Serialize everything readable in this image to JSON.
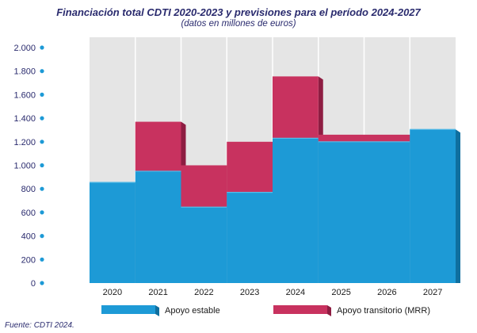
{
  "title": "Financiación total CDTI 2020-2023 y previsiones para el período 2024-2027",
  "subtitle": "(datos en millones de euros)",
  "source": "Fuente: CDTI 2024.",
  "colors": {
    "estable": "#1d9ad6",
    "estable_side": "#0f6f9f",
    "estable_top": "#58bce8",
    "mrr": "#c8325f",
    "mrr_side": "#8e1d42",
    "mrr_top": "#dd5a82",
    "axis_text": "#2a2b6e",
    "dot": "#1d9ad6",
    "grid_bg": "#e5e5e5"
  },
  "chart_data": {
    "type": "bar",
    "stacked": true,
    "title": "Financiación total CDTI 2020-2023 y previsiones para el período 2024-2027",
    "subtitle": "(datos en millones de euros)",
    "categories": [
      "2020",
      "2021",
      "2022",
      "2023",
      "2024",
      "2025",
      "2026",
      "2027"
    ],
    "series": [
      {
        "name": "Apoyo estable",
        "values": [
          855,
          950,
          645,
          770,
          1230,
          1200,
          1200,
          1305
        ]
      },
      {
        "name": "Apoyo transitorio (MRR)",
        "values": [
          0,
          420,
          355,
          430,
          525,
          60,
          60,
          0
        ]
      }
    ],
    "ylim": [
      0,
      2000
    ],
    "yticks": [
      0,
      200,
      400,
      600,
      800,
      1000,
      1200,
      1400,
      1600,
      1800,
      2000
    ],
    "ytick_labels": [
      "0",
      "200",
      "400",
      "600",
      "800",
      "1.000",
      "1.200",
      "1.400",
      "1.600",
      "1.800",
      "2.000"
    ],
    "grid": true,
    "legend_position": "bottom"
  }
}
